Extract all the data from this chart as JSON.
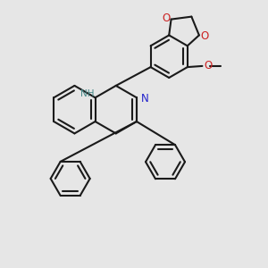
{
  "bg": "#e6e6e6",
  "bond_color": "#1a1a1a",
  "N_color": "#2222cc",
  "O_color": "#cc2222",
  "NH_color": "#448888",
  "figsize": [
    3.0,
    3.0
  ],
  "dpi": 100,
  "xlim": [
    -1.25,
    1.25
  ],
  "ylim": [
    -1.4,
    1.1
  ]
}
